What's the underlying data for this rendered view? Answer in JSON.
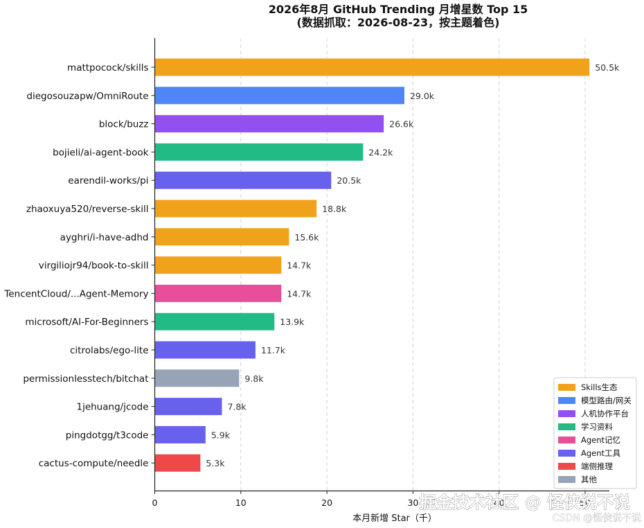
{
  "chart_data": {
    "type": "bar",
    "orientation": "horizontal",
    "title": "2026年8月 GitHub Trending 月增星数 Top 15",
    "subtitle": "(数据抓取：2026-08-23，按主题着色)",
    "xlabel": "本月新增 Star（千）",
    "ylabel": "",
    "xlim": [
      0,
      52.5
    ],
    "xticks": [
      0,
      10,
      20,
      30,
      40,
      50
    ],
    "xtick_labels": [
      "0",
      "10",
      "20",
      "30",
      "40",
      "50"
    ],
    "grid": "vertical-dashed",
    "legend_position": "bottom-right",
    "categories": [
      "mattpocock/skills",
      "diegosouzapw/OmniRoute",
      "block/buzz",
      "bojieli/ai-agent-book",
      "earendil-works/pi",
      "zhaoxuya520/reverse-skill",
      "ayghri/i-have-adhd",
      "virgiliojr94/book-to-skill",
      "TencentCloud/...Agent-Memory",
      "microsoft/AI-For-Beginners",
      "citrolabs/ego-lite",
      "permissionlesstech/bitchat",
      "1jehuang/jcode",
      "pingdotgg/t3code",
      "cactus-compute/needle"
    ],
    "values": [
      50.5,
      29.0,
      26.6,
      24.2,
      20.5,
      18.8,
      15.6,
      14.7,
      14.7,
      13.9,
      11.7,
      9.8,
      7.8,
      5.9,
      5.3
    ],
    "value_labels": [
      "50.5k",
      "29.0k",
      "26.6k",
      "24.2k",
      "20.5k",
      "18.8k",
      "15.6k",
      "14.7k",
      "14.7k",
      "13.9k",
      "11.7k",
      "9.8k",
      "7.8k",
      "5.9k",
      "5.3k"
    ],
    "bar_groups": [
      0,
      1,
      2,
      3,
      5,
      0,
      0,
      0,
      4,
      3,
      5,
      7,
      5,
      5,
      6
    ],
    "legend": [
      {
        "name": "Skills生态",
        "color": "#F0A21A"
      },
      {
        "name": "模型路由/网关",
        "color": "#4F86F7"
      },
      {
        "name": "人机协作平台",
        "color": "#9350F0"
      },
      {
        "name": "学习资料",
        "color": "#22BB85"
      },
      {
        "name": "Agent记忆",
        "color": "#E84E9A"
      },
      {
        "name": "Agent工具",
        "color": "#6861EE"
      },
      {
        "name": "端侧推理",
        "color": "#EE4849"
      },
      {
        "name": "其他",
        "color": "#97A3B6"
      }
    ]
  },
  "watermark": {
    "main": "掘金技术社区 @ 怪侠说不说",
    "sub": "CSDN @怪侠说不说"
  }
}
